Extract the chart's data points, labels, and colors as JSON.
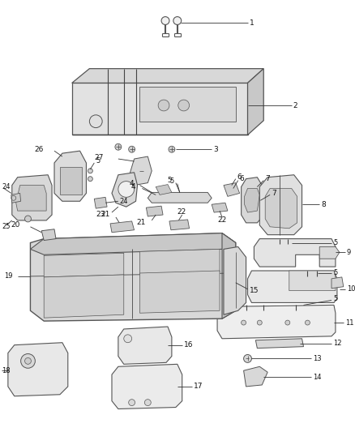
{
  "bg_color": "#ffffff",
  "fig_width": 4.38,
  "fig_height": 5.33,
  "dpi": 100,
  "ec": "#555555",
  "lc": "#444444",
  "fs": 6.5,
  "part_fc": "#e8e8e8",
  "part_fc2": "#d5d5d5",
  "part_fc3": "#c8c8c8"
}
